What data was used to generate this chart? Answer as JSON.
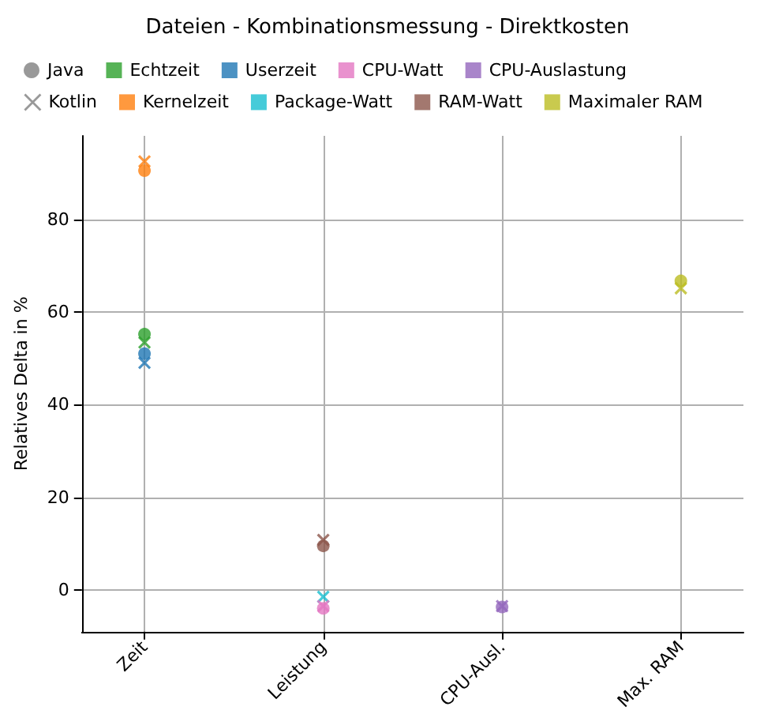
{
  "chart_data": {
    "type": "scatter",
    "title": "Dateien - Kombinationsmessung - Direktkosten",
    "ylabel": "Relatives Delta in %",
    "categories": [
      "Zeit",
      "Leistung",
      "CPU-Ausl.",
      "Max. RAM"
    ],
    "ylim": [
      -9,
      98
    ],
    "yticks": [
      0,
      20,
      40,
      60,
      80
    ],
    "grid": true,
    "legend": "top",
    "series": [
      {
        "name": "Java",
        "color": "#808080",
        "marker": "circle",
        "x": [
          "Zeit"
        ],
        "values": [
          null
        ]
      },
      {
        "name": "Kotlin",
        "color": "#808080",
        "marker": "cross",
        "x": [
          "Zeit"
        ],
        "values": [
          null
        ]
      },
      {
        "name": "Echtzeit",
        "color": "#2ca02c",
        "marker": "circle",
        "x": [
          "Zeit"
        ],
        "values": [
          55.2
        ]
      },
      {
        "color": "#2ca02c",
        "marker": "cross",
        "x": [
          "Zeit"
        ],
        "values": [
          53.4
        ]
      },
      {
        "name": "Kernelzeit",
        "color": "#ff7f0e",
        "marker": "circle",
        "x": [
          "Zeit"
        ],
        "values": [
          90.5
        ]
      },
      {
        "color": "#ff7f0e",
        "marker": "cross",
        "x": [
          "Zeit"
        ],
        "values": [
          92.5
        ]
      },
      {
        "name": "Userzeit",
        "color": "#1f77b4",
        "marker": "circle",
        "x": [
          "Zeit"
        ],
        "values": [
          51
        ]
      },
      {
        "color": "#1f77b4",
        "marker": "cross",
        "x": [
          "Zeit"
        ],
        "values": [
          49
        ]
      },
      {
        "name": "Package-Watt",
        "color": "#17becf",
        "marker": "circle",
        "x": [
          "Leistung"
        ],
        "values": [
          null
        ]
      },
      {
        "color": "#17becf",
        "marker": "cross",
        "x": [
          "Leistung"
        ],
        "values": [
          -1.5
        ]
      },
      {
        "name": "CPU-Watt",
        "color": "#e377c2",
        "marker": "circle",
        "x": [
          "Leistung"
        ],
        "values": [
          -4
        ]
      },
      {
        "color": "#e377c2",
        "marker": "cross",
        "x": [
          "Leistung"
        ],
        "values": [
          -3.5
        ]
      },
      {
        "name": "RAM-Watt",
        "color": "#8c564b",
        "marker": "circle",
        "x": [
          "Leistung"
        ],
        "values": [
          9.5
        ]
      },
      {
        "color": "#8c564b",
        "marker": "cross",
        "x": [
          "Leistung"
        ],
        "values": [
          10.8
        ]
      },
      {
        "name": "CPU-Auslastung",
        "color": "#9467bd",
        "marker": "circle",
        "x": [
          "CPU-Ausl."
        ],
        "values": [
          -3.7
        ]
      },
      {
        "color": "#9467bd",
        "marker": "cross",
        "x": [
          "CPU-Ausl."
        ],
        "values": [
          -3.5
        ]
      },
      {
        "name": "Maximaler RAM",
        "color": "#bcbd22",
        "marker": "circle",
        "x": [
          "Max. RAM"
        ],
        "values": [
          66.7
        ]
      },
      {
        "color": "#bcbd22",
        "marker": "cross",
        "x": [
          "Max. RAM"
        ],
        "values": [
          65.1
        ]
      }
    ]
  }
}
